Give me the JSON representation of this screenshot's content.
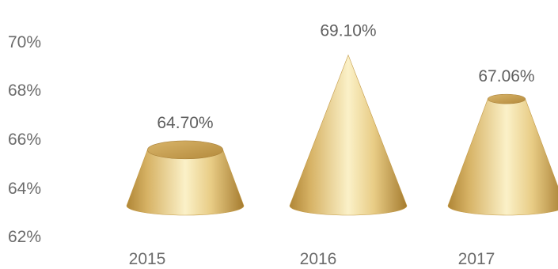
{
  "chart_data": {
    "type": "bar",
    "mark": "cone",
    "categories": [
      "2015",
      "2016",
      "2017"
    ],
    "values": [
      64.7,
      69.1,
      67.06
    ],
    "data_labels": [
      "64.70%",
      "69.10%",
      "67.06%"
    ],
    "y_ticks": [
      "62%",
      "64%",
      "66%",
      "68%",
      "70%"
    ],
    "ylim": [
      62,
      70
    ],
    "grid": false,
    "legend": false,
    "colors": {
      "cone_light": "#fbf0c6",
      "cone_mid": "#e5c77a",
      "cone_dark": "#b58c39",
      "cone_top": "#c9a254",
      "text": "#6b6b6b"
    }
  }
}
